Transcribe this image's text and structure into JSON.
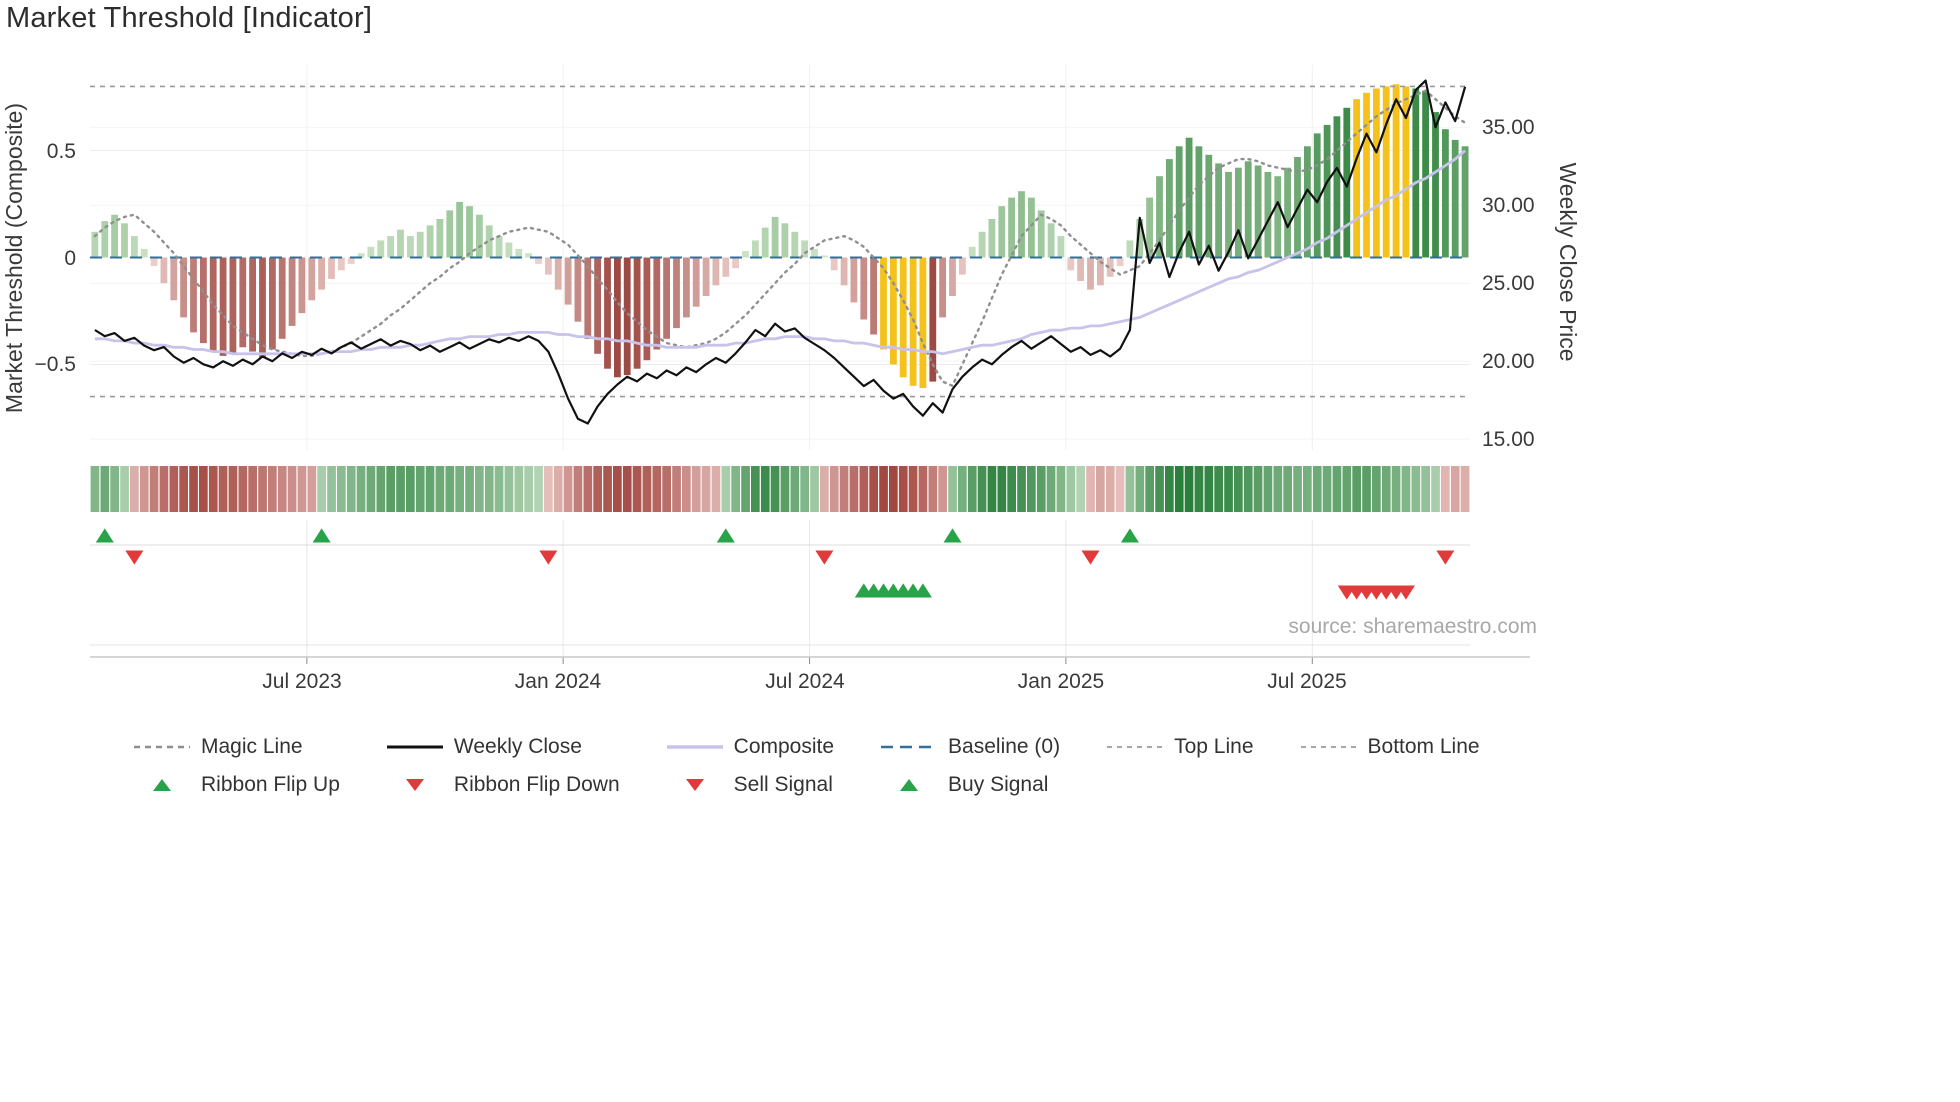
{
  "title": "Market Threshold [Indicator]",
  "source_note": "source: sharemaestro.com",
  "legend": {
    "items": [
      {
        "label": "Magic Line",
        "type": "dashed-gray"
      },
      {
        "label": "Weekly Close",
        "type": "solid-black"
      },
      {
        "label": "Composite",
        "type": "solid-purple"
      },
      {
        "label": "Baseline (0)",
        "type": "dashed-blue"
      },
      {
        "label": "Top Line",
        "type": "dashed-gray-thin"
      },
      {
        "label": "Bottom Line",
        "type": "dashed-gray-thin"
      },
      {
        "label": "Ribbon Flip Up",
        "type": "triangle-up-green"
      },
      {
        "label": "Ribbon Flip Down",
        "type": "triangle-down-red"
      },
      {
        "label": "Sell Signal",
        "type": "triangle-down-red"
      },
      {
        "label": "Buy Signal",
        "type": "triangle-up-green"
      }
    ]
  },
  "colors": {
    "bar_green_light": "#cfe6c8",
    "bar_green_dark": "#3e8a49",
    "bar_red_light": "#f2d7d3",
    "bar_red_dark": "#9e4a44",
    "gold": "#f5c21b",
    "weekly_close": "#111111",
    "composite": "#c8c3ea",
    "magic": "#8f8f8f",
    "baseline": "#336f96",
    "top_bottom": "#9a9a9a",
    "ribbon_green_light": "#e2f1dd",
    "ribbon_green_dark": "#1f7a33",
    "ribbon_red_light": "#f6ddda",
    "ribbon_red_dark": "#a03f39",
    "signal_green": "#27a348",
    "signal_red": "#e23a3a"
  },
  "chart_data": {
    "type": "bar",
    "title": "Market Threshold [Indicator]",
    "x_count": 140,
    "left_axis": {
      "label": "Market Threshold (Composite)",
      "tick_labels": [
        "0.5",
        "0",
        "−0.5"
      ],
      "ticks": [
        0.5,
        0,
        -0.5
      ]
    },
    "right_axis": {
      "label": "Weekly Close Price",
      "tick_labels": [
        "35.00",
        "30.00",
        "25.00",
        "20.00",
        "15.00"
      ],
      "ticks": [
        35,
        30,
        25,
        20,
        15
      ]
    },
    "x_axis": {
      "tick_labels": [
        "Jul 2023",
        "Jan 2024",
        "Jul 2024",
        "Jan 2025",
        "Jul 2025"
      ],
      "tick_indices": [
        21,
        47,
        72,
        98,
        123
      ]
    },
    "ylim_left": [
      -0.9,
      0.9
    ],
    "ylim_right": [
      14.3,
      39.0
    ],
    "top_line": 0.8,
    "bottom_line": -0.65,
    "baseline": 0,
    "gold_ranges": [
      [
        80,
        84
      ],
      [
        128,
        133
      ]
    ],
    "threshold_bars": [
      0.12,
      0.17,
      0.2,
      0.16,
      0.1,
      0.04,
      -0.04,
      -0.12,
      -0.2,
      -0.28,
      -0.35,
      -0.4,
      -0.44,
      -0.46,
      -0.45,
      -0.42,
      -0.44,
      -0.47,
      -0.43,
      -0.38,
      -0.32,
      -0.26,
      -0.2,
      -0.15,
      -0.1,
      -0.06,
      -0.03,
      0.02,
      0.05,
      0.08,
      0.1,
      0.13,
      0.1,
      0.12,
      0.15,
      0.18,
      0.22,
      0.26,
      0.24,
      0.2,
      0.15,
      0.1,
      0.07,
      0.04,
      0.02,
      -0.03,
      -0.08,
      -0.15,
      -0.22,
      -0.3,
      -0.38,
      -0.45,
      -0.52,
      -0.56,
      -0.55,
      -0.52,
      -0.48,
      -0.43,
      -0.38,
      -0.33,
      -0.28,
      -0.23,
      -0.18,
      -0.13,
      -0.09,
      -0.05,
      0.03,
      0.08,
      0.14,
      0.19,
      0.16,
      0.12,
      0.08,
      0.04,
      0.01,
      -0.06,
      -0.13,
      -0.21,
      -0.29,
      -0.36,
      -0.43,
      -0.5,
      -0.56,
      -0.6,
      -0.61,
      -0.58,
      -0.28,
      -0.18,
      -0.08,
      0.05,
      0.12,
      0.18,
      0.24,
      0.28,
      0.31,
      0.28,
      0.22,
      0.16,
      0.1,
      -0.06,
      -0.11,
      -0.15,
      -0.13,
      -0.09,
      -0.04,
      0.08,
      0.18,
      0.28,
      0.38,
      0.46,
      0.52,
      0.56,
      0.52,
      0.48,
      0.44,
      0.4,
      0.42,
      0.45,
      0.43,
      0.4,
      0.38,
      0.42,
      0.47,
      0.52,
      0.58,
      0.62,
      0.66,
      0.7,
      0.74,
      0.77,
      0.79,
      0.8,
      0.81,
      0.8,
      0.79,
      0.78,
      0.68,
      0.6,
      0.55,
      0.52
    ],
    "weekly_close": [
      22.0,
      21.6,
      21.8,
      21.3,
      21.5,
      21.0,
      20.7,
      20.9,
      20.3,
      19.9,
      20.2,
      19.8,
      19.6,
      20.0,
      19.7,
      20.1,
      19.8,
      20.3,
      20.0,
      20.5,
      20.2,
      20.6,
      20.4,
      20.8,
      20.5,
      20.9,
      21.2,
      20.8,
      21.1,
      21.4,
      21.0,
      21.3,
      21.1,
      20.7,
      21.0,
      20.6,
      20.9,
      21.2,
      20.8,
      21.1,
      21.4,
      21.2,
      21.5,
      21.3,
      21.6,
      21.3,
      20.6,
      19.2,
      17.6,
      16.3,
      16.0,
      17.1,
      17.9,
      18.5,
      19.0,
      18.7,
      19.2,
      18.9,
      19.4,
      19.1,
      19.6,
      19.3,
      19.8,
      20.2,
      19.9,
      20.5,
      21.2,
      22.0,
      21.6,
      22.4,
      21.9,
      22.1,
      21.5,
      21.1,
      20.7,
      20.2,
      19.6,
      19.0,
      18.4,
      18.8,
      18.1,
      17.6,
      17.9,
      17.1,
      16.5,
      17.3,
      16.7,
      18.2,
      19.0,
      19.6,
      20.1,
      19.8,
      20.4,
      20.9,
      21.3,
      20.8,
      21.2,
      21.6,
      21.1,
      20.6,
      20.9,
      20.4,
      20.7,
      20.3,
      20.8,
      22.0,
      29.2,
      26.3,
      27.6,
      25.4,
      27.0,
      28.3,
      26.2,
      27.4,
      25.8,
      27.0,
      28.4,
      26.6,
      27.8,
      29.0,
      30.2,
      28.6,
      29.8,
      31.0,
      30.2,
      31.5,
      32.4,
      31.2,
      33.0,
      34.6,
      33.4,
      35.2,
      36.8,
      35.6,
      37.4,
      38.0,
      35.0,
      36.6,
      35.4,
      37.6
    ],
    "composite_line": [
      -0.38,
      -0.38,
      -0.39,
      -0.39,
      -0.4,
      -0.4,
      -0.41,
      -0.41,
      -0.42,
      -0.42,
      -0.43,
      -0.43,
      -0.44,
      -0.44,
      -0.45,
      -0.45,
      -0.45,
      -0.45,
      -0.45,
      -0.45,
      -0.45,
      -0.45,
      -0.45,
      -0.45,
      -0.44,
      -0.44,
      -0.44,
      -0.43,
      -0.43,
      -0.42,
      -0.42,
      -0.42,
      -0.41,
      -0.41,
      -0.4,
      -0.39,
      -0.38,
      -0.38,
      -0.37,
      -0.37,
      -0.37,
      -0.36,
      -0.36,
      -0.35,
      -0.35,
      -0.35,
      -0.35,
      -0.36,
      -0.36,
      -0.37,
      -0.37,
      -0.38,
      -0.38,
      -0.39,
      -0.39,
      -0.4,
      -0.41,
      -0.41,
      -0.42,
      -0.42,
      -0.42,
      -0.42,
      -0.41,
      -0.41,
      -0.41,
      -0.4,
      -0.4,
      -0.39,
      -0.38,
      -0.38,
      -0.37,
      -0.37,
      -0.37,
      -0.38,
      -0.38,
      -0.39,
      -0.39,
      -0.4,
      -0.4,
      -0.41,
      -0.42,
      -0.42,
      -0.43,
      -0.43,
      -0.44,
      -0.44,
      -0.45,
      -0.44,
      -0.43,
      -0.42,
      -0.41,
      -0.41,
      -0.4,
      -0.39,
      -0.38,
      -0.36,
      -0.35,
      -0.34,
      -0.34,
      -0.33,
      -0.33,
      -0.32,
      -0.32,
      -0.31,
      -0.3,
      -0.29,
      -0.28,
      -0.26,
      -0.24,
      -0.22,
      -0.2,
      -0.18,
      -0.16,
      -0.14,
      -0.12,
      -0.1,
      -0.09,
      -0.07,
      -0.06,
      -0.04,
      -0.02,
      0.0,
      0.02,
      0.04,
      0.07,
      0.09,
      0.12,
      0.15,
      0.18,
      0.21,
      0.24,
      0.27,
      0.29,
      0.32,
      0.35,
      0.37,
      0.4,
      0.43,
      0.46,
      0.5
    ],
    "magic_line": [
      0.1,
      0.14,
      0.17,
      0.19,
      0.2,
      0.16,
      0.12,
      0.07,
      0.02,
      -0.04,
      -0.1,
      -0.16,
      -0.22,
      -0.27,
      -0.32,
      -0.35,
      -0.38,
      -0.41,
      -0.43,
      -0.44,
      -0.45,
      -0.46,
      -0.46,
      -0.45,
      -0.44,
      -0.42,
      -0.4,
      -0.37,
      -0.34,
      -0.31,
      -0.27,
      -0.24,
      -0.2,
      -0.16,
      -0.12,
      -0.09,
      -0.05,
      -0.02,
      0.02,
      0.05,
      0.08,
      0.1,
      0.12,
      0.13,
      0.14,
      0.13,
      0.12,
      0.09,
      0.06,
      0.01,
      -0.04,
      -0.1,
      -0.15,
      -0.21,
      -0.26,
      -0.3,
      -0.34,
      -0.37,
      -0.4,
      -0.41,
      -0.42,
      -0.41,
      -0.4,
      -0.38,
      -0.35,
      -0.31,
      -0.27,
      -0.22,
      -0.17,
      -0.12,
      -0.07,
      -0.03,
      0.02,
      0.05,
      0.08,
      0.09,
      0.1,
      0.08,
      0.05,
      0.0,
      -0.05,
      -0.12,
      -0.2,
      -0.29,
      -0.4,
      -0.5,
      -0.58,
      -0.6,
      -0.5,
      -0.4,
      -0.3,
      -0.19,
      -0.08,
      0.01,
      0.1,
      0.15,
      0.2,
      0.18,
      0.15,
      0.1,
      0.06,
      0.02,
      -0.02,
      -0.05,
      -0.08,
      -0.06,
      -0.04,
      0.02,
      0.08,
      0.15,
      0.22,
      0.28,
      0.34,
      0.38,
      0.42,
      0.44,
      0.46,
      0.46,
      0.45,
      0.43,
      0.42,
      0.41,
      0.4,
      0.41,
      0.43,
      0.46,
      0.5,
      0.54,
      0.58,
      0.62,
      0.66,
      0.69,
      0.72,
      0.74,
      0.76,
      0.78,
      0.74,
      0.7,
      0.66,
      0.63
    ],
    "ribbon": [
      0.5,
      0.6,
      0.5,
      0.3,
      -0.3,
      -0.45,
      -0.6,
      -0.7,
      -0.8,
      -0.85,
      -0.9,
      -0.9,
      -0.85,
      -0.8,
      -0.8,
      -0.75,
      -0.7,
      -0.65,
      -0.6,
      -0.55,
      -0.5,
      -0.45,
      -0.4,
      0.3,
      0.4,
      0.45,
      0.5,
      0.55,
      0.6,
      0.65,
      0.7,
      0.7,
      0.7,
      0.65,
      0.65,
      0.6,
      0.6,
      0.55,
      0.55,
      0.5,
      0.5,
      0.45,
      0.4,
      0.35,
      0.3,
      0.25,
      -0.2,
      -0.3,
      -0.45,
      -0.6,
      -0.7,
      -0.8,
      -0.85,
      -0.9,
      -0.9,
      -0.85,
      -0.8,
      -0.75,
      -0.7,
      -0.6,
      -0.5,
      -0.4,
      -0.35,
      -0.3,
      0.3,
      0.5,
      0.65,
      0.8,
      0.85,
      0.8,
      0.7,
      0.6,
      0.5,
      0.35,
      -0.3,
      -0.45,
      -0.6,
      -0.7,
      -0.8,
      -0.9,
      -0.95,
      -0.95,
      -0.9,
      -0.85,
      -0.75,
      -0.6,
      -0.45,
      0.4,
      0.55,
      0.7,
      0.8,
      0.9,
      0.9,
      0.85,
      0.8,
      0.75,
      0.7,
      0.6,
      0.5,
      0.35,
      0.25,
      -0.25,
      -0.35,
      -0.3,
      -0.2,
      0.4,
      0.55,
      0.7,
      0.8,
      0.9,
      0.95,
      0.95,
      0.9,
      0.9,
      0.85,
      0.85,
      0.8,
      0.75,
      0.7,
      0.65,
      0.6,
      0.6,
      0.55,
      0.55,
      0.6,
      0.6,
      0.65,
      0.65,
      0.7,
      0.7,
      0.65,
      0.6,
      0.55,
      0.5,
      0.45,
      0.4,
      0.3,
      -0.25,
      -0.35,
      -0.3
    ],
    "signals": {
      "ribbon_flip_up": [
        1,
        23,
        64,
        87,
        105
      ],
      "ribbon_flip_down": [
        4,
        46,
        74,
        101,
        137
      ],
      "buy_signal": [
        78,
        79,
        80,
        81,
        82,
        83,
        84
      ],
      "sell_signal": [
        127,
        128,
        129,
        130,
        131,
        132,
        133
      ]
    }
  }
}
